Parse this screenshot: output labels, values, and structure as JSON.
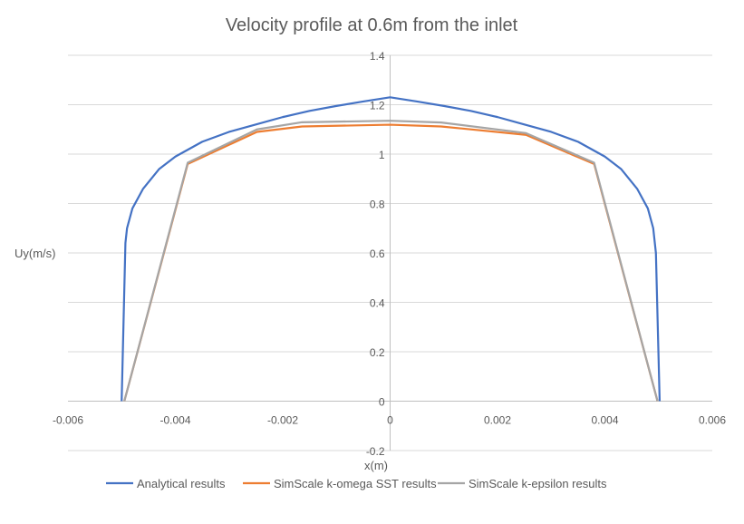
{
  "chart_data": {
    "type": "line",
    "title": "Velocity profile at 0.6m from the inlet",
    "xlabel": "x(m)",
    "ylabel": "Uy(m/s)",
    "xlim": [
      -0.006,
      0.006
    ],
    "ylim": [
      -0.2,
      1.4
    ],
    "xticks": [
      "-0.006",
      "-0.004",
      "-0.002",
      "0",
      "0.002",
      "0.004",
      "0.006"
    ],
    "xtick_values": [
      -0.006,
      -0.004,
      -0.002,
      0,
      0.002,
      0.004,
      0.006
    ],
    "yticks": [
      "-0.2",
      "0",
      "0.2",
      "0.4",
      "0.6",
      "0.8",
      "1",
      "1.2",
      "1.4"
    ],
    "ytick_values": [
      -0.2,
      0,
      0.2,
      0.4,
      0.6,
      0.8,
      1,
      1.2,
      1.4
    ],
    "grid": true,
    "legend": "bottom",
    "series": [
      {
        "name": "Analytical results",
        "color": "#4472C4",
        "x": [
          -0.005,
          -0.00493,
          -0.0049,
          -0.0048,
          -0.0046,
          -0.0043,
          -0.004,
          -0.0035,
          -0.003,
          -0.0025,
          -0.002,
          -0.0015,
          -0.001,
          -0.0005,
          0,
          0.0005,
          0.001,
          0.0015,
          0.002,
          0.0025,
          0.003,
          0.0035,
          0.004,
          0.0043,
          0.0046,
          0.0048,
          0.0049,
          0.00495,
          0.00502
        ],
        "y": [
          0,
          0.64,
          0.7,
          0.78,
          0.86,
          0.94,
          0.99,
          1.05,
          1.09,
          1.12,
          1.15,
          1.175,
          1.195,
          1.213,
          1.23,
          1.213,
          1.195,
          1.175,
          1.15,
          1.12,
          1.09,
          1.05,
          0.99,
          0.94,
          0.86,
          0.78,
          0.7,
          0.6,
          0
        ]
      },
      {
        "name": "SimScale k-omega SST results",
        "color": "#ED7D31",
        "x": [
          -0.00495,
          -0.00377,
          -0.00248,
          -0.00164,
          0,
          0.00095,
          0.00253,
          0.0038,
          0.00498
        ],
        "y": [
          0,
          0.96,
          1.09,
          1.112,
          1.119,
          1.112,
          1.078,
          0.96,
          0
        ]
      },
      {
        "name": "SimScale k-epsilon results",
        "color": "#A5A5A5",
        "x": [
          -0.00495,
          -0.00377,
          -0.00248,
          -0.00164,
          0,
          0.00095,
          0.00253,
          0.0038,
          0.00498
        ],
        "y": [
          0,
          0.965,
          1.1,
          1.129,
          1.135,
          1.128,
          1.085,
          0.965,
          0
        ]
      }
    ]
  }
}
